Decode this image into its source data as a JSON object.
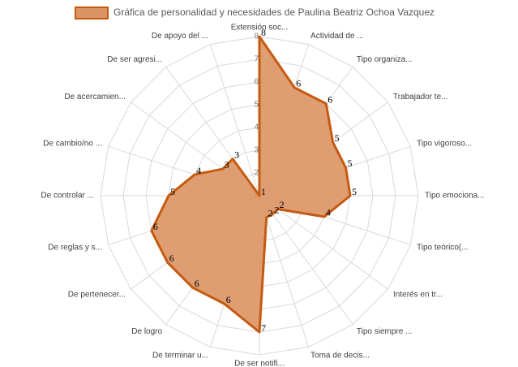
{
  "chart_data": {
    "type": "radar",
    "series": [
      {
        "name": "Gráfica de personalidad y necesidades de Paulina Beatriz Ochoa Vazquez",
        "color": "#c55a11",
        "fill": "#dc9363",
        "values": [
          8,
          6,
          6,
          5,
          5,
          5,
          4,
          2,
          2,
          2,
          7,
          6,
          6,
          6,
          6,
          5,
          4,
          3,
          3,
          1
        ]
      }
    ],
    "categories": [
      "Extensión soc...",
      "Actividad de ...",
      "Tipo organiza...",
      "Trabajador te...",
      "Tipo vigoroso...",
      "Tipo emociona...",
      "Tipo teórico(...",
      "Interés en tr...",
      "Tipo siempre ...",
      "Toma de decis...",
      "De ser notifi...",
      "De terminar u...",
      "De logro",
      "De pertenecer...",
      "De reglas y s...",
      "De controlar ...",
      "De cambio/no ...",
      "De acercamien...",
      "De ser agresi...",
      "De apoyo del ..."
    ],
    "ylim": [
      1,
      8
    ],
    "yticks": [
      1,
      2,
      3,
      4,
      5,
      6,
      7,
      8
    ],
    "grid": true,
    "legend": "top"
  }
}
